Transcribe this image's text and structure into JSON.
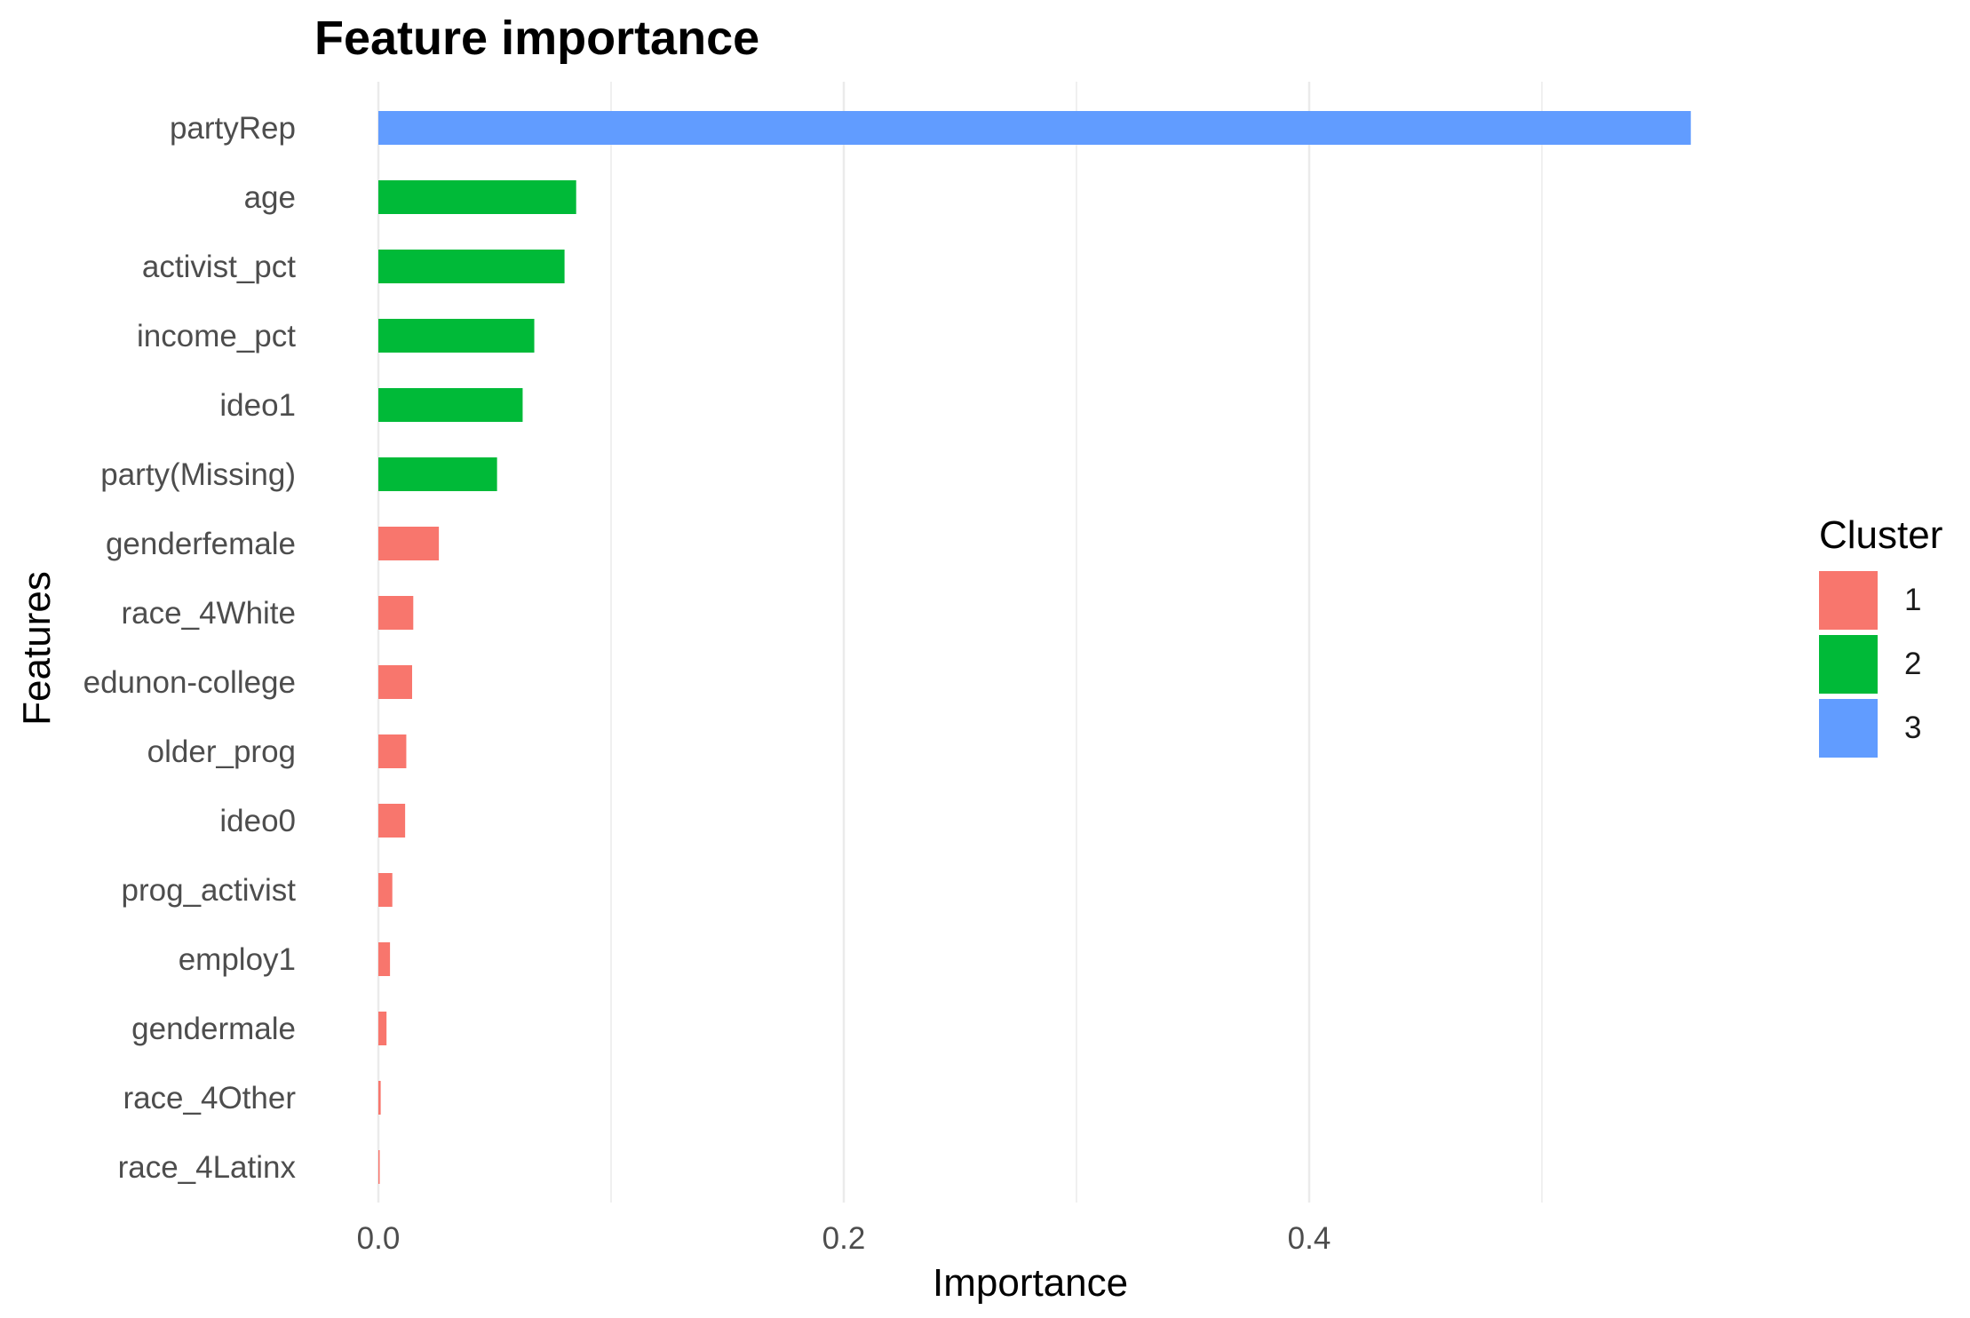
{
  "chart_data": {
    "type": "bar",
    "orientation": "horizontal",
    "title": "Feature importance",
    "xlabel": "Importance",
    "ylabel": "Features",
    "xlim": [
      -0.0,
      0.6
    ],
    "xticks": [
      "0.0",
      "0.2",
      "0.4"
    ],
    "xtick_values": [
      0.0,
      0.2,
      0.4
    ],
    "grid": true,
    "legend_title": "Cluster",
    "legend_position": "right",
    "clusters": [
      {
        "name": "1",
        "color": "#F8766D"
      },
      {
        "name": "2",
        "color": "#00BA38"
      },
      {
        "name": "3",
        "color": "#619CFF"
      }
    ],
    "categories": [
      "partyRep",
      "age",
      "activist_pct",
      "income_pct",
      "ideo1",
      "party(Missing)",
      "genderfemale",
      "race_4White",
      "edunon-college",
      "older_prog",
      "ideo0",
      "prog_activist",
      "employ1",
      "gendermale",
      "race_4Other",
      "race_4Latinx"
    ],
    "values": [
      0.564,
      0.085,
      0.08,
      0.067,
      0.062,
      0.051,
      0.026,
      0.015,
      0.0145,
      0.012,
      0.0115,
      0.006,
      0.005,
      0.0035,
      0.001,
      0.0005
    ],
    "cluster": [
      "3",
      "2",
      "2",
      "2",
      "2",
      "2",
      "1",
      "1",
      "1",
      "1",
      "1",
      "1",
      "1",
      "1",
      "1",
      "1"
    ]
  }
}
